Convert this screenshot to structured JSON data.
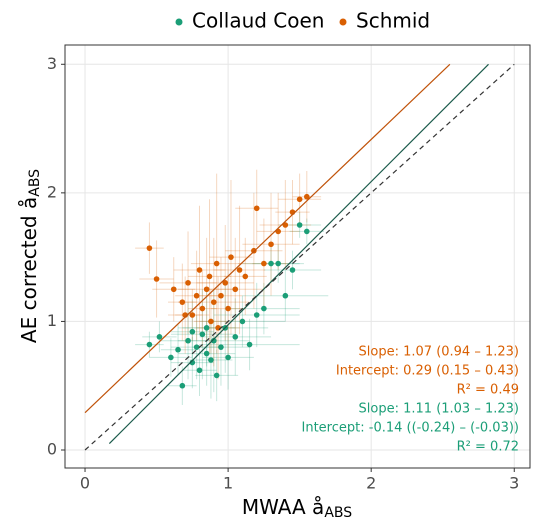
{
  "chart_data": {
    "type": "scatter",
    "x_label": "MWAA å",
    "x_label_sub": "ABS",
    "y_label": "AE corrected å",
    "y_label_sub": "ABS",
    "xlim": [
      -0.14,
      3.11
    ],
    "ylim": [
      -0.14,
      3.15
    ],
    "xticks": [
      0,
      1,
      2,
      3
    ],
    "yticks": [
      0,
      1,
      2,
      3
    ],
    "grid": true,
    "series": [
      {
        "name": "Collaud Coen",
        "color": "#1b9e77",
        "x": [
          0.45,
          0.52,
          0.6,
          0.65,
          0.68,
          0.72,
          0.75,
          0.78,
          0.8,
          0.82,
          0.85,
          0.88,
          0.9,
          0.92,
          0.95,
          0.98,
          1.0,
          1.05,
          1.1,
          1.15,
          1.2,
          1.25,
          1.3,
          1.35,
          1.4,
          1.5,
          1.55,
          1.45,
          0.85,
          0.75
        ],
        "y": [
          0.82,
          0.88,
          0.72,
          0.78,
          0.5,
          0.85,
          0.68,
          0.8,
          0.62,
          0.9,
          0.75,
          0.7,
          0.85,
          0.58,
          0.8,
          0.95,
          0.72,
          0.88,
          1.0,
          0.82,
          1.05,
          1.1,
          1.45,
          1.45,
          1.2,
          1.75,
          1.7,
          1.4,
          0.95,
          0.92
        ],
        "xerr": [
          0.1,
          0.12,
          0.15,
          0.12,
          0.1,
          0.2,
          0.15,
          0.18,
          0.12,
          0.22,
          0.2,
          0.15,
          0.25,
          0.15,
          0.2,
          0.3,
          0.18,
          0.25,
          0.3,
          0.35,
          0.3,
          0.25,
          0.2,
          0.18,
          0.3,
          0.15,
          0.12,
          0.2,
          0.2,
          0.15
        ],
        "yerr": [
          0.1,
          0.12,
          0.15,
          0.2,
          0.15,
          0.3,
          0.2,
          0.25,
          0.2,
          0.35,
          0.25,
          0.3,
          0.4,
          0.2,
          0.3,
          0.35,
          0.25,
          0.3,
          0.2,
          0.2,
          0.25,
          0.2,
          0.15,
          0.15,
          0.2,
          0.1,
          0.1,
          0.15,
          0.3,
          0.25
        ]
      },
      {
        "name": "Schmid",
        "color": "#d95f02",
        "x": [
          0.45,
          0.5,
          0.62,
          0.68,
          0.72,
          0.75,
          0.78,
          0.8,
          0.82,
          0.85,
          0.87,
          0.88,
          0.9,
          0.92,
          0.95,
          0.98,
          1.0,
          1.02,
          1.05,
          1.08,
          1.12,
          1.18,
          1.2,
          1.25,
          1.3,
          1.35,
          1.4,
          1.45,
          1.5,
          1.55,
          0.7,
          0.93
        ],
        "y": [
          1.57,
          1.33,
          1.25,
          1.15,
          1.3,
          1.05,
          1.2,
          1.4,
          1.1,
          1.25,
          1.35,
          1.0,
          1.15,
          1.45,
          1.2,
          1.3,
          1.1,
          1.5,
          1.25,
          1.4,
          1.35,
          1.55,
          1.88,
          1.45,
          1.6,
          1.7,
          1.75,
          1.85,
          1.95,
          1.97,
          1.05,
          0.95
        ],
        "xerr": [
          0.1,
          0.12,
          0.15,
          0.1,
          0.2,
          0.12,
          0.15,
          0.18,
          0.1,
          0.2,
          0.15,
          0.12,
          0.25,
          0.18,
          0.15,
          0.2,
          0.12,
          0.15,
          0.2,
          0.18,
          0.15,
          0.2,
          0.15,
          0.18,
          0.2,
          0.15,
          0.18,
          0.12,
          0.15,
          0.1,
          0.12,
          0.15
        ],
        "yerr": [
          0.2,
          0.3,
          0.25,
          0.3,
          0.4,
          0.2,
          0.35,
          0.5,
          0.3,
          0.4,
          0.6,
          0.25,
          0.5,
          0.7,
          0.3,
          0.45,
          0.35,
          0.6,
          0.4,
          0.5,
          0.3,
          0.45,
          0.3,
          0.35,
          0.4,
          0.3,
          0.35,
          0.25,
          0.2,
          0.2,
          0.3,
          0.4
        ]
      }
    ],
    "lines": [
      {
        "x": [
          0.17,
          2.82
        ],
        "y": [
          0.05,
          3.0
        ],
        "color": "#1a5a4a",
        "dash": false
      },
      {
        "x": [
          0,
          2.55
        ],
        "y": [
          0.29,
          3.0
        ],
        "color": "#c0530a",
        "dash": false
      },
      {
        "x": [
          0,
          3
        ],
        "y": [
          0,
          3
        ],
        "color": "#333333",
        "dash": true
      }
    ],
    "annotations": [
      {
        "text": "Slope: 1.07 (0.94 – 1.23)",
        "color": "#d95f02"
      },
      {
        "text": "Intercept: 0.29 (0.15 – 0.43)",
        "color": "#d95f02"
      },
      {
        "text": "R² = 0.49",
        "color": "#d95f02"
      },
      {
        "text": "Slope: 1.11 (1.03 – 1.23)",
        "color": "#1b9e77"
      },
      {
        "text": "Intercept: -0.14 ((-0.24) – (-0.03))",
        "color": "#1b9e77"
      },
      {
        "text": "R² = 0.72",
        "color": "#1b9e77"
      }
    ]
  }
}
